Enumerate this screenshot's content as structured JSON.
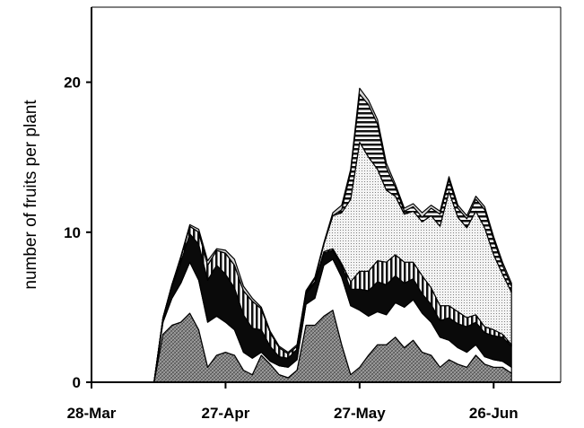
{
  "chart_data": {
    "type": "area",
    "stacked": true,
    "title": "",
    "xlabel": "",
    "ylabel": "number of fruits per plant",
    "x_ticks": [
      {
        "day": 0,
        "label": "28-Mar"
      },
      {
        "day": 30,
        "label": "27-Apr"
      },
      {
        "day": 60,
        "label": "27-May"
      },
      {
        "day": 90,
        "label": "26-Jun"
      }
    ],
    "y_ticks": [
      0,
      10,
      20
    ],
    "xlim": [
      0,
      105
    ],
    "ylim": [
      0,
      25
    ],
    "grid": false,
    "legend": "none",
    "x_days": [
      14,
      16,
      18,
      20,
      22,
      24,
      26,
      28,
      30,
      32,
      34,
      36,
      38,
      40,
      42,
      44,
      46,
      48,
      50,
      52,
      54,
      56,
      58,
      60,
      62,
      64,
      66,
      68,
      70,
      72,
      74,
      76,
      78,
      80,
      82,
      84,
      86,
      88,
      90,
      92,
      94
    ],
    "series": [
      {
        "pattern": "crosshatch-gray",
        "values": [
          0,
          3.2,
          3.8,
          4.0,
          4.6,
          3.5,
          1.0,
          1.8,
          2.0,
          1.8,
          0.8,
          0.5,
          1.8,
          1.2,
          0.5,
          0.3,
          0.8,
          3.8,
          3.8,
          4.4,
          4.8,
          2.5,
          0.5,
          1.0,
          1.8,
          2.5,
          2.5,
          3.0,
          2.3,
          2.8,
          2.0,
          1.8,
          1.0,
          1.5,
          1.2,
          1.0,
          1.8,
          1.2,
          1.0,
          1.0,
          0.6
        ]
      },
      {
        "pattern": "white",
        "values": [
          0,
          0.8,
          1.8,
          2.6,
          3.4,
          3.3,
          3.0,
          2.6,
          2.0,
          1.7,
          1.2,
          1.1,
          0.2,
          0.2,
          0.6,
          0.7,
          0.7,
          1.4,
          1.8,
          3.4,
          3.4,
          4.5,
          4.6,
          3.8,
          2.6,
          2.2,
          2.0,
          2.3,
          2.7,
          2.7,
          2.6,
          2.2,
          2.0,
          1.3,
          1.1,
          1.0,
          0.7,
          0.5,
          0.5,
          0.4,
          0.4
        ]
      },
      {
        "pattern": "black",
        "values": [
          0,
          0.3,
          0.8,
          1.4,
          1.9,
          2.4,
          2.8,
          3.4,
          3.2,
          2.8,
          2.5,
          2.0,
          1.5,
          1.0,
          0.6,
          0.6,
          0.7,
          0.7,
          1.0,
          0.8,
          0.6,
          0.8,
          1.1,
          1.4,
          1.7,
          2.0,
          2.0,
          1.8,
          1.6,
          1.4,
          1.3,
          1.2,
          1.1,
          1.5,
          1.6,
          1.7,
          1.5,
          1.6,
          1.6,
          1.6,
          1.4
        ]
      },
      {
        "pattern": "vertical-stripes",
        "values": [
          0,
          0,
          0.1,
          0.3,
          0.5,
          0.8,
          1.0,
          1.0,
          1.4,
          1.5,
          1.6,
          1.8,
          1.4,
          0.9,
          0.6,
          0.3,
          0.2,
          0.1,
          0.1,
          0.1,
          0.1,
          0.1,
          0.5,
          1.2,
          1.3,
          1.4,
          1.5,
          1.4,
          1.4,
          1.1,
          1.2,
          1.1,
          1.0,
          0.8,
          0.8,
          0.6,
          0.5,
          0.4,
          0.4,
          0.2,
          0.1
        ]
      },
      {
        "pattern": "dotted",
        "values": [
          0,
          0,
          0,
          0,
          0,
          0,
          0,
          0,
          0,
          0,
          0,
          0,
          0,
          0,
          0,
          0,
          0,
          0,
          0.2,
          0.5,
          2.2,
          3.4,
          5.5,
          8.6,
          7.6,
          6.1,
          4.8,
          3.9,
          3.2,
          3.4,
          3.6,
          4.8,
          5.3,
          7.6,
          6.3,
          6.0,
          6.9,
          6.6,
          5.0,
          4.0,
          3.5
        ]
      },
      {
        "pattern": "horizontal-stripes",
        "values": [
          0,
          0,
          0,
          0,
          0,
          0,
          0,
          0,
          0,
          0,
          0,
          0,
          0,
          0,
          0,
          0,
          0,
          0,
          0,
          0,
          0,
          0.2,
          1.8,
          3.2,
          3.5,
          3.0,
          1.5,
          0.6,
          0.2,
          0.3,
          0.3,
          0.5,
          0.8,
          0.8,
          0.6,
          0.6,
          0.8,
          1.2,
          1.0,
          0.6,
          0.4
        ]
      },
      {
        "pattern": "light-gray",
        "values": [
          0,
          0,
          0,
          0.1,
          0.1,
          0.2,
          0.3,
          0.1,
          0.2,
          0.4,
          0.3,
          0.2,
          0.1,
          0.1,
          0.1,
          0.1,
          0.1,
          0.1,
          0.1,
          0.1,
          0.2,
          0.3,
          0.2,
          0.4,
          0.3,
          0.3,
          0.3,
          0.2,
          0.2,
          0.2,
          0.3,
          0.2,
          0.2,
          0.2,
          0.2,
          0.2,
          0.2,
          0.2,
          0.2,
          0.2,
          0.2
        ]
      }
    ]
  }
}
